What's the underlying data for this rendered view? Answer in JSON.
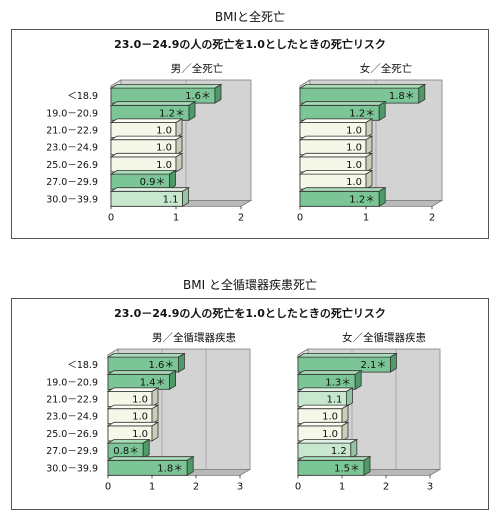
{
  "sections": [
    {
      "title": "BMIと全死亡",
      "heading": "23.0－24.9の人の死亡を1.0としたときの死亡リスク",
      "charts": [
        {
          "subtitle": "男／全死亡",
          "values": [
            1.6,
            1.2,
            1.0,
            1.0,
            1.0,
            0.9,
            1.1
          ],
          "labels": [
            "1.6＊",
            "1.2＊",
            "1.0",
            "1.0",
            "1.0",
            "0.9＊",
            "1.1"
          ],
          "xmax": 2,
          "ticks": [
            "0",
            "1",
            "2"
          ]
        },
        {
          "subtitle": "女／全死亡",
          "values": [
            1.8,
            1.2,
            1.0,
            1.0,
            1.0,
            1.0,
            1.2
          ],
          "labels": [
            "1.8＊",
            "1.2＊",
            "1.0",
            "1.0",
            "1.0",
            "1.0",
            "1.2＊"
          ],
          "xmax": 2,
          "ticks": [
            "0",
            "1",
            "2"
          ]
        }
      ]
    },
    {
      "title": "BMI と全循環器疾患死亡",
      "heading": "23.0－24.9の人の死亡を1.0としたときの死亡リスク",
      "charts": [
        {
          "subtitle": "男／全循環器疾患",
          "values": [
            1.6,
            1.4,
            1.0,
            1.0,
            1.0,
            0.8,
            1.8
          ],
          "labels": [
            "1.6＊",
            "1.4＊",
            "1.0",
            "1.0",
            "1.0",
            "0.8＊",
            "1.8＊"
          ],
          "xmax": 3,
          "ticks": [
            "0",
            "1",
            "2",
            "3"
          ]
        },
        {
          "subtitle": "女／全循環器疾患",
          "values": [
            2.1,
            1.3,
            1.1,
            1.0,
            1.0,
            1.2,
            1.5
          ],
          "labels": [
            "2.1＊",
            "1.3＊",
            "1.1",
            "1.0",
            "1.0",
            "1.2",
            "1.5＊"
          ],
          "xmax": 3,
          "ticks": [
            "0",
            "1",
            "2",
            "3"
          ]
        }
      ]
    }
  ],
  "chart_data": [
    {
      "type": "bar",
      "title": "男／全死亡",
      "categories": [
        "＜18.9",
        "19.0－20.9",
        "21.0－22.9",
        "23.0－24.9",
        "25.0－26.9",
        "27.0－29.9",
        "30.0－39.9"
      ],
      "values": [
        1.6,
        1.2,
        1.0,
        1.0,
        1.0,
        0.9,
        1.1
      ],
      "xlim": [
        0,
        2
      ]
    },
    {
      "type": "bar",
      "title": "女／全死亡",
      "categories": [
        "＜18.9",
        "19.0－20.9",
        "21.0－22.9",
        "23.0－24.9",
        "25.0－26.9",
        "27.0－29.9",
        "30.0－39.9"
      ],
      "values": [
        1.8,
        1.2,
        1.0,
        1.0,
        1.0,
        1.0,
        1.2
      ],
      "xlim": [
        0,
        2
      ]
    },
    {
      "type": "bar",
      "title": "男／全循環器疾患",
      "categories": [
        "＜18.9",
        "19.0－20.9",
        "21.0－22.9",
        "23.0－24.9",
        "25.0－26.9",
        "27.0－29.9",
        "30.0－39.9"
      ],
      "values": [
        1.6,
        1.4,
        1.0,
        1.0,
        1.0,
        0.8,
        1.8
      ],
      "xlim": [
        0,
        3
      ]
    },
    {
      "type": "bar",
      "title": "女／全循環器疾患",
      "categories": [
        "＜18.9",
        "19.0－20.9",
        "21.0－22.9",
        "23.0－24.9",
        "25.0－26.9",
        "27.0－29.9",
        "30.0－39.9"
      ],
      "values": [
        2.1,
        1.3,
        1.1,
        1.0,
        1.0,
        1.2,
        1.5
      ],
      "xlim": [
        0,
        3
      ]
    }
  ],
  "categories": [
    "＜18.9",
    "19.0－20.9",
    "21.0－22.9",
    "23.0－24.9",
    "25.0－26.9",
    "27.0－29.9",
    "30.0－39.9"
  ],
  "colors": {
    "significant": "#7cc596",
    "normal": "#c8e7cf",
    "reference": "#f5f8e8",
    "significant_top": "#a9dcb8",
    "normal_top": "#e2f3e6",
    "reference_top": "#fbfdf3",
    "significant_side": "#4e9a69",
    "normal_side": "#96c3a2",
    "reference_side": "#c9ceb8",
    "wall": "#d3d3d3",
    "wall_dark": "#b9b9b9"
  }
}
